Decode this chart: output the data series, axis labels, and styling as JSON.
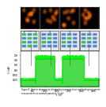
{
  "bg_color": "#ffffff",
  "signal_color": "#00ff00",
  "fill_color": "#00cc00",
  "high_level": -300,
  "low_level": -1200,
  "ylim": [
    -1500,
    -50
  ],
  "yticks": [
    -200,
    -400,
    -600,
    -800,
    -1000,
    -1200
  ],
  "ytick_labels": [
    "200",
    "400",
    "600",
    "800",
    "1000",
    "1200"
  ],
  "xticks": [
    500,
    1000,
    1500,
    2000,
    2500,
    3000
  ],
  "time_total": 3200,
  "ylabel": "I (nA)",
  "xlabel": "t (s)",
  "schematic_blue": "#4488dd",
  "schematic_green": "#22cc44",
  "schematic_bg": "#e8e8e8",
  "schematic_border": "#444444",
  "caption": "Figure 8 - Sensor response to alternating exposure to air and hydrogen (current measurement at constant potential, 5 mV)"
}
